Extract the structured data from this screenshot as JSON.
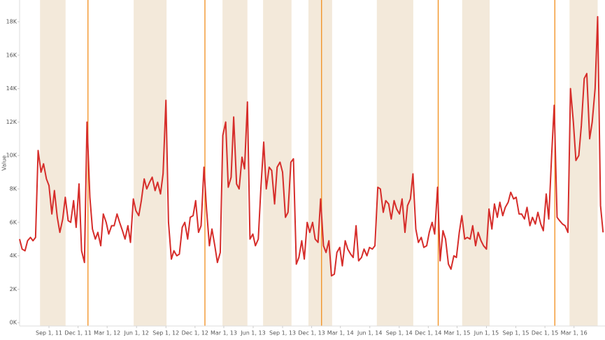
{
  "chart_data": {
    "type": "line",
    "y_label": "Value",
    "color": "#d62d2a",
    "band_color": "#f3e9da",
    "marker_color": "#f28e1c",
    "xlim": [
      "2011-06-01",
      "2016-06-06"
    ],
    "ylim": [
      -200,
      19300
    ],
    "yticks": [
      {
        "value": 0,
        "label": "0K"
      },
      {
        "value": 2000,
        "label": "2K"
      },
      {
        "value": 4000,
        "label": "4K"
      },
      {
        "value": 6000,
        "label": "6K"
      },
      {
        "value": 8000,
        "label": "8K"
      },
      {
        "value": 10000,
        "label": "10K"
      },
      {
        "value": 12000,
        "label": "12K"
      },
      {
        "value": 14000,
        "label": "14K"
      },
      {
        "value": 16000,
        "label": "16K"
      },
      {
        "value": 18000,
        "label": "18K"
      }
    ],
    "xticks": [
      {
        "value": "2011-09-01",
        "label": "Sep 1, 11"
      },
      {
        "value": "2011-12-01",
        "label": "Dec 1, 11"
      },
      {
        "value": "2012-03-01",
        "label": "Mar 1, 12"
      },
      {
        "value": "2012-06-01",
        "label": "Jun 1, 12"
      },
      {
        "value": "2012-09-01",
        "label": "Sep 1, 12"
      },
      {
        "value": "2012-12-01",
        "label": "Dec 1, 12"
      },
      {
        "value": "2013-03-01",
        "label": "Mar 1, 13"
      },
      {
        "value": "2013-06-01",
        "label": "Jun 1, 13"
      },
      {
        "value": "2013-09-01",
        "label": "Sep 1, 13"
      },
      {
        "value": "2013-12-01",
        "label": "Dec 1, 13"
      },
      {
        "value": "2014-03-01",
        "label": "Mar 1, 14"
      },
      {
        "value": "2014-06-01",
        "label": "Jun 1, 14"
      },
      {
        "value": "2014-09-01",
        "label": "Sep 1, 14"
      },
      {
        "value": "2014-12-01",
        "label": "Dec 1, 14"
      },
      {
        "value": "2015-03-01",
        "label": "Mar 1, 15"
      },
      {
        "value": "2015-06-01",
        "label": "Jun 1, 15"
      },
      {
        "value": "2015-09-01",
        "label": "Sep 1, 15"
      },
      {
        "value": "2015-12-01",
        "label": "Dec 1, 15"
      },
      {
        "value": "2016-03-01",
        "label": "Mar 1, 16"
      }
    ],
    "bands": [
      [
        "2011-08-04",
        "2011-10-23"
      ],
      [
        "2012-05-23",
        "2012-09-03"
      ],
      [
        "2013-02-25",
        "2013-05-14"
      ],
      [
        "2013-07-02",
        "2013-09-29"
      ],
      [
        "2013-11-21",
        "2014-02-03"
      ],
      [
        "2014-06-23",
        "2014-10-15"
      ],
      [
        "2015-03-17",
        "2015-06-11"
      ],
      [
        "2016-02-16",
        "2016-05-14"
      ]
    ],
    "markers": [
      "2012-01-01",
      "2013-01-01",
      "2014-01-01",
      "2015-01-01",
      "2016-01-01"
    ],
    "x": [
      "2011-06-01",
      "2011-06-09",
      "2011-06-18",
      "2011-06-26",
      "2011-07-05",
      "2011-07-13",
      "2011-07-21",
      "2011-07-29",
      "2011-08-07",
      "2011-08-15",
      "2011-08-24",
      "2011-09-01",
      "2011-09-10",
      "2011-09-18",
      "2011-09-27",
      "2011-10-05",
      "2011-10-14",
      "2011-10-22",
      "2011-10-31",
      "2011-11-08",
      "2011-11-17",
      "2011-11-25",
      "2011-12-04",
      "2011-12-12",
      "2011-12-21",
      "2011-12-29",
      "2012-01-07",
      "2012-01-15",
      "2012-01-24",
      "2012-02-01",
      "2012-02-10",
      "2012-02-18",
      "2012-02-27",
      "2012-03-06",
      "2012-03-15",
      "2012-03-23",
      "2012-04-01",
      "2012-04-09",
      "2012-04-18",
      "2012-04-26",
      "2012-05-05",
      "2012-05-13",
      "2012-05-22",
      "2012-05-30",
      "2012-06-08",
      "2012-06-16",
      "2012-06-25",
      "2012-07-03",
      "2012-07-12",
      "2012-07-20",
      "2012-07-29",
      "2012-08-06",
      "2012-08-15",
      "2012-08-23",
      "2012-09-01",
      "2012-09-09",
      "2012-09-18",
      "2012-09-26",
      "2012-10-05",
      "2012-10-13",
      "2012-10-22",
      "2012-10-30",
      "2012-11-08",
      "2012-11-16",
      "2012-11-25",
      "2012-12-03",
      "2012-12-12",
      "2012-12-20",
      "2012-12-29",
      "2013-01-06",
      "2013-01-15",
      "2013-01-23",
      "2013-02-01",
      "2013-02-09",
      "2013-02-18",
      "2013-02-26",
      "2013-03-07",
      "2013-03-15",
      "2013-03-24",
      "2013-04-01",
      "2013-04-10",
      "2013-04-18",
      "2013-04-27",
      "2013-05-05",
      "2013-05-14",
      "2013-05-22",
      "2013-05-31",
      "2013-06-08",
      "2013-06-17",
      "2013-06-25",
      "2013-07-04",
      "2013-07-12",
      "2013-07-21",
      "2013-07-29",
      "2013-08-07",
      "2013-08-15",
      "2013-08-24",
      "2013-09-01",
      "2013-09-10",
      "2013-09-18",
      "2013-09-27",
      "2013-10-05",
      "2013-10-14",
      "2013-10-22",
      "2013-10-31",
      "2013-11-08",
      "2013-11-17",
      "2013-11-25",
      "2013-12-04",
      "2013-12-12",
      "2013-12-21",
      "2013-12-29",
      "2014-01-07",
      "2014-01-15",
      "2014-01-24",
      "2014-02-01",
      "2014-02-10",
      "2014-02-18",
      "2014-02-27",
      "2014-03-07",
      "2014-03-16",
      "2014-03-24",
      "2014-04-02",
      "2014-04-10",
      "2014-04-19",
      "2014-04-27",
      "2014-05-06",
      "2014-05-14",
      "2014-05-23",
      "2014-05-31",
      "2014-06-09",
      "2014-06-17",
      "2014-06-26",
      "2014-07-04",
      "2014-07-13",
      "2014-07-21",
      "2014-07-30",
      "2014-08-07",
      "2014-08-16",
      "2014-08-24",
      "2014-09-02",
      "2014-09-10",
      "2014-09-19",
      "2014-09-27",
      "2014-10-06",
      "2014-10-14",
      "2014-10-23",
      "2014-10-31",
      "2014-11-09",
      "2014-11-17",
      "2014-11-26",
      "2014-12-04",
      "2014-12-13",
      "2014-12-21",
      "2014-12-30",
      "2015-01-07",
      "2015-01-16",
      "2015-01-24",
      "2015-02-02",
      "2015-02-10",
      "2015-02-19",
      "2015-02-27",
      "2015-03-08",
      "2015-03-16",
      "2015-03-25",
      "2015-04-02",
      "2015-04-11",
      "2015-04-19",
      "2015-04-28",
      "2015-05-06",
      "2015-05-15",
      "2015-05-23",
      "2015-06-01",
      "2015-06-09",
      "2015-06-18",
      "2015-06-26",
      "2015-07-05",
      "2015-07-13",
      "2015-07-22",
      "2015-07-30",
      "2015-08-08",
      "2015-08-16",
      "2015-08-25",
      "2015-09-02",
      "2015-09-11",
      "2015-09-19",
      "2015-09-28",
      "2015-10-06",
      "2015-10-15",
      "2015-10-23",
      "2015-11-01",
      "2015-11-09",
      "2015-11-18",
      "2015-11-26",
      "2015-12-05",
      "2015-12-13",
      "2015-12-22",
      "2015-12-30",
      "2016-01-08",
      "2016-01-16",
      "2016-01-25",
      "2016-02-02",
      "2016-02-11",
      "2016-02-19",
      "2016-02-28",
      "2016-03-07",
      "2016-03-16",
      "2016-03-24",
      "2016-04-02",
      "2016-04-10",
      "2016-04-19",
      "2016-04-27",
      "2016-05-06",
      "2016-05-14",
      "2016-05-23",
      "2016-05-31"
    ],
    "values": [
      5000,
      4400,
      4300,
      4900,
      5100,
      4900,
      5100,
      10300,
      9000,
      9500,
      8600,
      8200,
      6500,
      7900,
      6300,
      5400,
      6200,
      7500,
      6100,
      6000,
      7300,
      5700,
      8300,
      4300,
      3600,
      12000,
      7500,
      5600,
      5000,
      5400,
      4600,
      6500,
      6000,
      5300,
      5800,
      5800,
      6500,
      6000,
      5500,
      5000,
      5800,
      4800,
      7400,
      6700,
      6400,
      7300,
      8600,
      8000,
      8400,
      8700,
      7900,
      8400,
      7700,
      8900,
      13300,
      6000,
      3800,
      4300,
      4000,
      4100,
      5700,
      6000,
      5000,
      6300,
      6400,
      7300,
      5400,
      5800,
      9300,
      6800,
      4600,
      5600,
      4600,
      3600,
      4200,
      11200,
      12000,
      8100,
      8700,
      12300,
      8300,
      8000,
      9900,
      9200,
      13200,
      5000,
      5300,
      4600,
      5000,
      8000,
      10800,
      8000,
      9300,
      9100,
      7100,
      9300,
      9600,
      9000,
      6300,
      6600,
      9600,
      9800,
      3500,
      3900,
      4900,
      3800,
      6000,
      5400,
      6000,
      5000,
      4800,
      7400,
      4600,
      4200,
      4900,
      2800,
      2900,
      4200,
      4500,
      3400,
      4900,
      4400,
      4100,
      3900,
      5800,
      3700,
      3900,
      4400,
      4000,
      4500,
      4400,
      4600,
      8100,
      8000,
      6600,
      7300,
      7100,
      6200,
      7300,
      6800,
      6500,
      7400,
      5400,
      7000,
      7400,
      8900,
      5600,
      4800,
      5100,
      4500,
      4600,
      5400,
      6000,
      5300,
      8100,
      3700,
      5500,
      5000,
      3500,
      3200,
      4000,
      3900,
      5400,
      6400,
      5000,
      5100,
      5000,
      5800,
      4600,
      5400,
      4900,
      4600,
      4400,
      6800,
      5600,
      7100,
      6300,
      7200,
      6400,
      6900,
      7200,
      7800,
      7400,
      7500,
      6500,
      6500,
      6200,
      6900,
      5800,
      6300,
      5900,
      6600,
      5900,
      5500,
      7700,
      6200,
      10000,
      13000,
      6300,
      6100,
      5900,
      5800,
      5400,
      14000,
      12000,
      9700,
      10000,
      11800,
      14600,
      14900,
      11000,
      12000,
      14000,
      18300,
      7000,
      5400
    ]
  }
}
